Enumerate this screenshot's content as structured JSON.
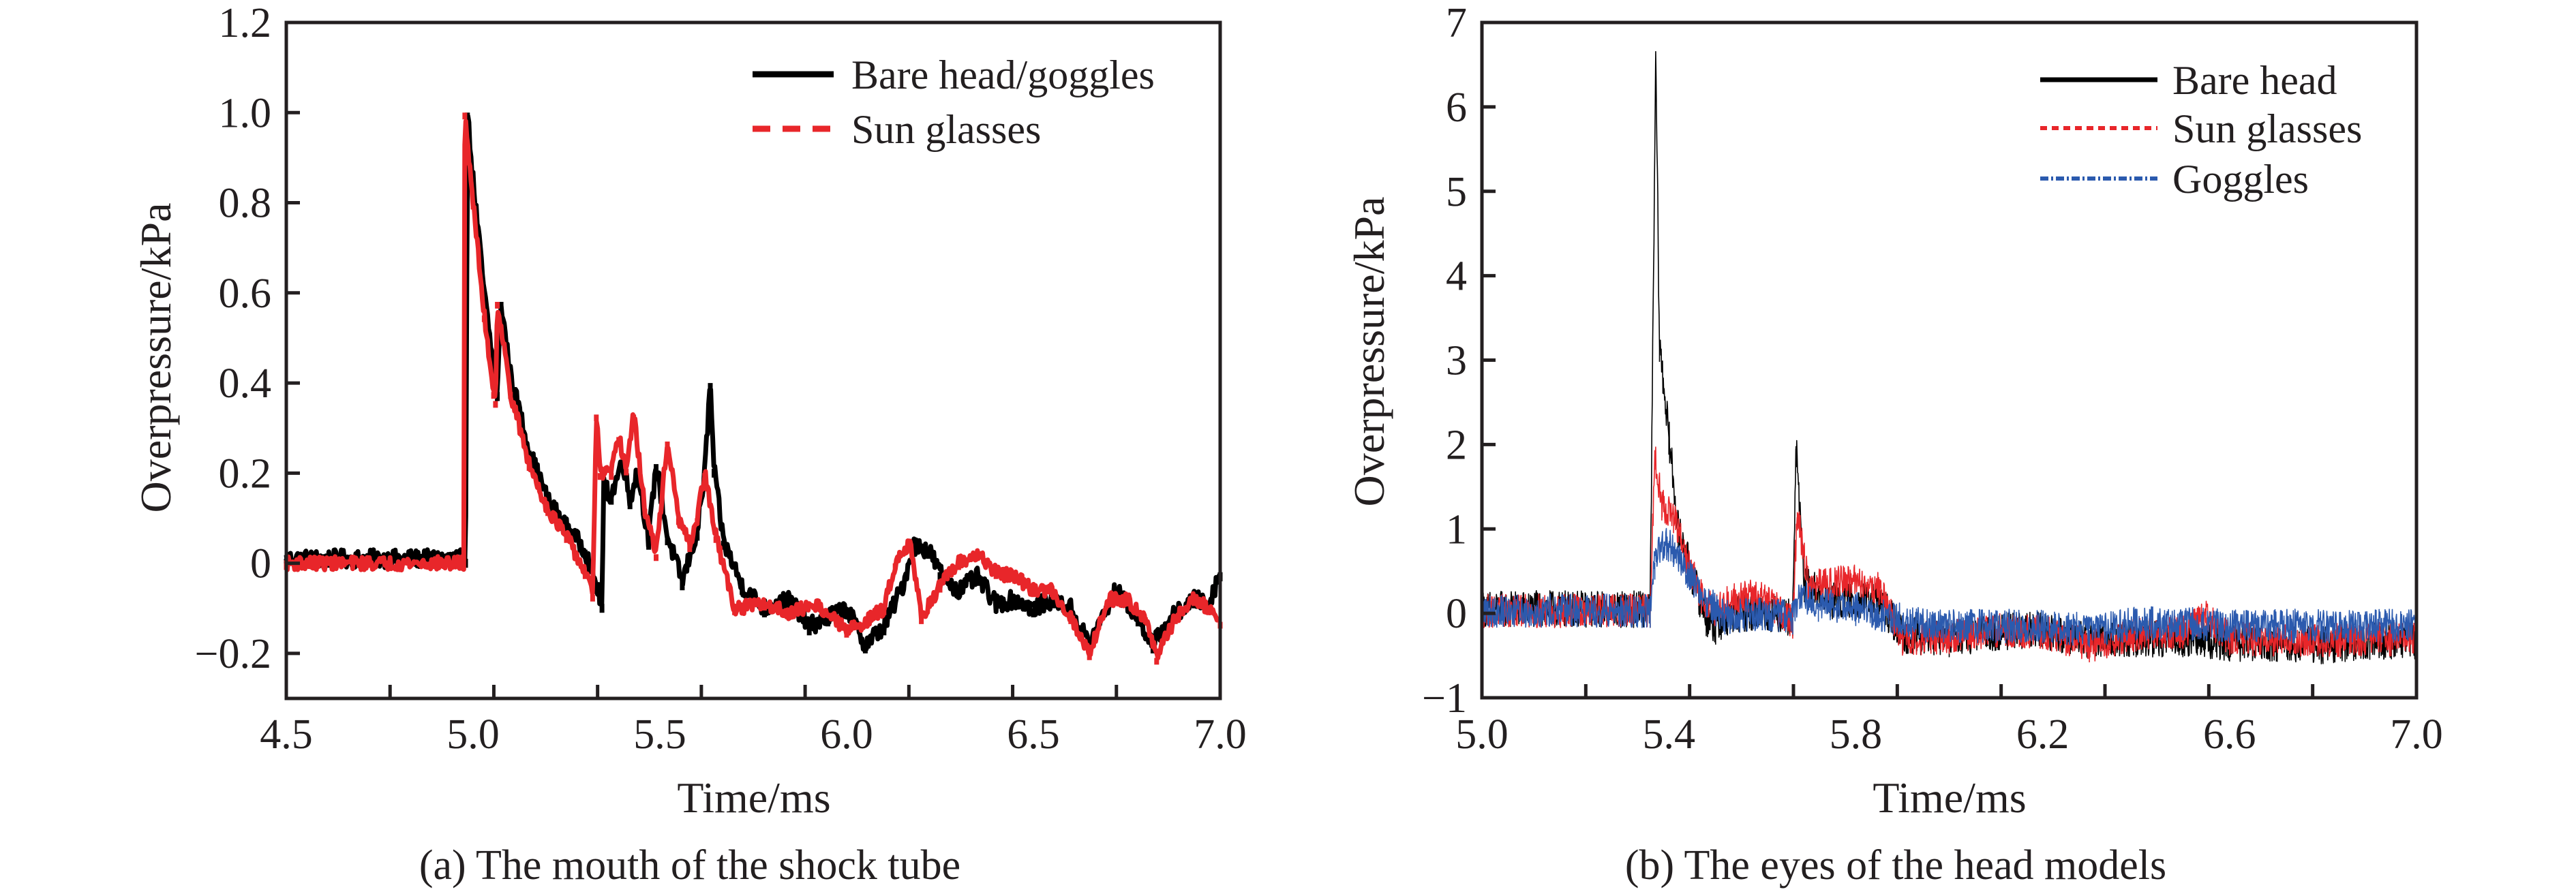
{
  "chart_data": [
    {
      "type": "line",
      "caption": "(a) The mouth of the shock tube",
      "xlabel": "Time/ms",
      "ylabel": "Overpressure/kPa",
      "xlim": [
        4.5,
        7.0
      ],
      "ylim": [
        -0.3,
        1.2
      ],
      "x_tick_labels": [
        "4.5",
        "5.0",
        "5.5",
        "6.0",
        "6.5",
        "7.0"
      ],
      "x_tick_values": [
        4.5,
        5.0,
        5.5,
        6.0,
        6.5,
        7.0
      ],
      "x_minor_tick_count": 9,
      "y_tick_labels": [
        "1.2",
        "1.0",
        "0.8",
        "0.6",
        "0.4",
        "0.2",
        "0",
        "−0.2"
      ],
      "y_tick_values": [
        1.2,
        1.0,
        0.8,
        0.6,
        0.4,
        0.2,
        0,
        -0.2
      ],
      "grid": false,
      "legend_position": "top-right",
      "series": [
        {
          "name": "Bare head/goggles",
          "color": "#000000",
          "style": "solid",
          "noise": 0.02,
          "points": [
            [
              4.5,
              0.01
            ],
            [
              4.98,
              0.01
            ],
            [
              4.985,
              1.0
            ],
            [
              5.0,
              0.85
            ],
            [
              5.03,
              0.6
            ],
            [
              5.06,
              0.4
            ],
            [
              5.065,
              0.38
            ],
            [
              5.075,
              0.58
            ],
            [
              5.1,
              0.42
            ],
            [
              5.15,
              0.25
            ],
            [
              5.2,
              0.14
            ],
            [
              5.25,
              0.08
            ],
            [
              5.3,
              0.03
            ],
            [
              5.345,
              -0.09
            ],
            [
              5.35,
              0.17
            ],
            [
              5.37,
              0.15
            ],
            [
              5.4,
              0.23
            ],
            [
              5.42,
              0.14
            ],
            [
              5.44,
              0.21
            ],
            [
              5.47,
              0.05
            ],
            [
              5.49,
              0.22
            ],
            [
              5.52,
              0.06
            ],
            [
              5.56,
              -0.04
            ],
            [
              5.6,
              0.07
            ],
            [
              5.62,
              0.2
            ],
            [
              5.635,
              0.4
            ],
            [
              5.645,
              0.21
            ],
            [
              5.67,
              0.05
            ],
            [
              5.72,
              -0.05
            ],
            [
              5.78,
              -0.1
            ],
            [
              5.85,
              -0.08
            ],
            [
              5.9,
              -0.14
            ],
            [
              5.95,
              -0.12
            ],
            [
              6.0,
              -0.1
            ],
            [
              6.05,
              -0.18
            ],
            [
              6.1,
              -0.14
            ],
            [
              6.15,
              -0.05
            ],
            [
              6.18,
              0.04
            ],
            [
              6.22,
              0.03
            ],
            [
              6.25,
              -0.02
            ],
            [
              6.3,
              -0.06
            ],
            [
              6.35,
              -0.03
            ],
            [
              6.4,
              -0.09
            ],
            [
              6.45,
              -0.08
            ],
            [
              6.5,
              -0.1
            ],
            [
              6.55,
              -0.08
            ],
            [
              6.6,
              -0.1
            ],
            [
              6.65,
              -0.18
            ],
            [
              6.72,
              -0.06
            ],
            [
              6.78,
              -0.12
            ],
            [
              6.82,
              -0.18
            ],
            [
              6.87,
              -0.12
            ],
            [
              6.93,
              -0.08
            ],
            [
              6.97,
              -0.09
            ],
            [
              7.0,
              -0.02
            ]
          ]
        },
        {
          "name": "Sun glasses",
          "color": "#e8262a",
          "style": "dashed",
          "noise": 0.015,
          "points": [
            [
              4.5,
              0.0
            ],
            [
              4.975,
              0.0
            ],
            [
              4.978,
              1.0
            ],
            [
              5.0,
              0.8
            ],
            [
              5.03,
              0.55
            ],
            [
              5.055,
              0.38
            ],
            [
              5.06,
              0.36
            ],
            [
              5.065,
              0.58
            ],
            [
              5.1,
              0.38
            ],
            [
              5.15,
              0.22
            ],
            [
              5.2,
              0.12
            ],
            [
              5.25,
              0.06
            ],
            [
              5.3,
              -0.02
            ],
            [
              5.32,
              -0.07
            ],
            [
              5.33,
              0.33
            ],
            [
              5.34,
              0.2
            ],
            [
              5.37,
              0.2
            ],
            [
              5.39,
              0.28
            ],
            [
              5.41,
              0.21
            ],
            [
              5.43,
              0.33
            ],
            [
              5.46,
              0.12
            ],
            [
              5.49,
              0.02
            ],
            [
              5.52,
              0.27
            ],
            [
              5.55,
              0.1
            ],
            [
              5.58,
              0.04
            ],
            [
              5.6,
              0.1
            ],
            [
              5.62,
              0.2
            ],
            [
              5.65,
              0.06
            ],
            [
              5.7,
              -0.1
            ],
            [
              5.78,
              -0.09
            ],
            [
              5.85,
              -0.11
            ],
            [
              5.92,
              -0.09
            ],
            [
              6.0,
              -0.15
            ],
            [
              6.05,
              -0.13
            ],
            [
              6.1,
              -0.1
            ],
            [
              6.13,
              0.0
            ],
            [
              6.17,
              0.05
            ],
            [
              6.2,
              -0.12
            ],
            [
              6.25,
              -0.05
            ],
            [
              6.3,
              0.0
            ],
            [
              6.35,
              0.02
            ],
            [
              6.4,
              -0.02
            ],
            [
              6.45,
              -0.03
            ],
            [
              6.5,
              -0.06
            ],
            [
              6.55,
              -0.06
            ],
            [
              6.6,
              -0.12
            ],
            [
              6.65,
              -0.2
            ],
            [
              6.7,
              -0.08
            ],
            [
              6.75,
              -0.08
            ],
            [
              6.8,
              -0.12
            ],
            [
              6.83,
              -0.21
            ],
            [
              6.88,
              -0.12
            ],
            [
              6.93,
              -0.08
            ],
            [
              6.97,
              -0.1
            ],
            [
              7.0,
              -0.13
            ]
          ]
        }
      ]
    },
    {
      "type": "line",
      "caption": "(b) The eyes of the head models",
      "xlabel": "Time/ms",
      "ylabel": "Overpressure/kPa",
      "xlim": [
        5.0,
        7.0
      ],
      "ylim": [
        -1,
        7
      ],
      "x_tick_labels": [
        "5.0",
        "5.4",
        "5.8",
        "6.2",
        "6.6",
        "7.0"
      ],
      "x_tick_values": [
        5.0,
        5.4,
        5.8,
        6.2,
        6.6,
        7.0
      ],
      "x_minor_tick_count": 9,
      "y_tick_labels": [
        "7",
        "6",
        "5",
        "4",
        "3",
        "2",
        "1",
        "0",
        "−1"
      ],
      "y_tick_values": [
        7,
        6,
        5,
        4,
        3,
        2,
        1,
        0,
        -1
      ],
      "grid": false,
      "legend_position": "top-right",
      "series": [
        {
          "name": "Bare head",
          "color": "#000000",
          "style": "solid",
          "noise": 0.22,
          "points": [
            [
              5.0,
              0.05
            ],
            [
              5.36,
              0.05
            ],
            [
              5.372,
              6.6
            ],
            [
              5.38,
              3.2
            ],
            [
              5.4,
              2.1
            ],
            [
              5.42,
              1.0
            ],
            [
              5.45,
              0.45
            ],
            [
              5.48,
              -0.05
            ],
            [
              5.5,
              -0.15
            ],
            [
              5.55,
              0.0
            ],
            [
              5.6,
              0.02
            ],
            [
              5.665,
              -0.05
            ],
            [
              5.672,
              1.98
            ],
            [
              5.69,
              0.35
            ],
            [
              5.75,
              0.15
            ],
            [
              5.85,
              0.15
            ],
            [
              5.9,
              -0.25
            ],
            [
              6.0,
              -0.3
            ],
            [
              6.1,
              -0.22
            ],
            [
              6.2,
              -0.2
            ],
            [
              6.3,
              -0.32
            ],
            [
              6.4,
              -0.3
            ],
            [
              6.5,
              -0.3
            ],
            [
              6.6,
              -0.35
            ],
            [
              6.7,
              -0.35
            ],
            [
              6.8,
              -0.38
            ],
            [
              6.9,
              -0.33
            ],
            [
              7.0,
              -0.32
            ]
          ]
        },
        {
          "name": "Sun glasses",
          "color": "#e8262a",
          "style": "dotted",
          "noise": 0.2,
          "points": [
            [
              5.0,
              0.03
            ],
            [
              5.36,
              0.03
            ],
            [
              5.37,
              1.9
            ],
            [
              5.385,
              1.3
            ],
            [
              5.41,
              1.15
            ],
            [
              5.44,
              0.6
            ],
            [
              5.47,
              0.2
            ],
            [
              5.5,
              0.05
            ],
            [
              5.55,
              0.2
            ],
            [
              5.6,
              0.2
            ],
            [
              5.665,
              -0.1
            ],
            [
              5.675,
              1.2
            ],
            [
              5.7,
              0.3
            ],
            [
              5.78,
              0.4
            ],
            [
              5.85,
              0.3
            ],
            [
              5.9,
              -0.3
            ],
            [
              6.0,
              -0.28
            ],
            [
              6.1,
              -0.2
            ],
            [
              6.2,
              -0.22
            ],
            [
              6.3,
              -0.38
            ],
            [
              6.4,
              -0.25
            ],
            [
              6.5,
              -0.22
            ],
            [
              6.55,
              -0.05
            ],
            [
              6.6,
              -0.3
            ],
            [
              6.8,
              -0.32
            ],
            [
              7.0,
              -0.3
            ]
          ]
        },
        {
          "name": "Goggles",
          "color": "#2b5aae",
          "style": "dashdot",
          "noise": 0.2,
          "points": [
            [
              5.0,
              0.03
            ],
            [
              5.36,
              0.03
            ],
            [
              5.37,
              0.6
            ],
            [
              5.39,
              0.85
            ],
            [
              5.41,
              0.75
            ],
            [
              5.44,
              0.5
            ],
            [
              5.48,
              0.15
            ],
            [
              5.52,
              -0.05
            ],
            [
              5.6,
              0.0
            ],
            [
              5.665,
              -0.05
            ],
            [
              5.68,
              0.25
            ],
            [
              5.72,
              0.1
            ],
            [
              5.8,
              0.05
            ],
            [
              5.88,
              -0.05
            ],
            [
              5.95,
              -0.15
            ],
            [
              6.1,
              -0.15
            ],
            [
              6.2,
              -0.15
            ],
            [
              6.3,
              -0.2
            ],
            [
              6.4,
              -0.12
            ],
            [
              6.5,
              -0.12
            ],
            [
              6.6,
              -0.15
            ],
            [
              6.8,
              -0.15
            ],
            [
              7.0,
              -0.15
            ]
          ]
        }
      ]
    }
  ]
}
